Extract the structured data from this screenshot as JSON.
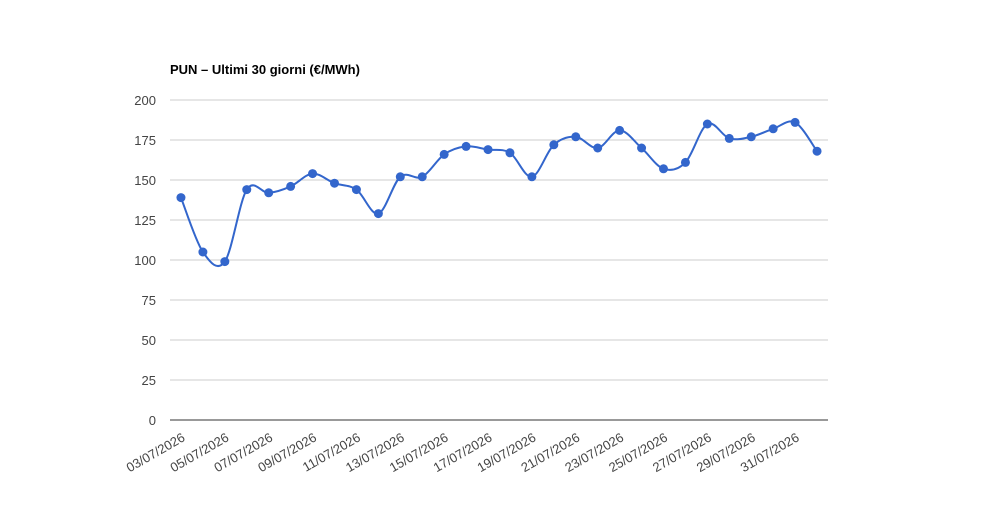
{
  "chart_data": {
    "type": "line",
    "title": "PUN – Ultimi 30 giorni (€/MWh)",
    "categories": [
      "03/07/2026",
      null,
      "05/07/2026",
      null,
      "07/07/2026",
      null,
      "09/07/2026",
      null,
      "11/07/2026",
      null,
      "13/07/2026",
      null,
      "15/07/2026",
      null,
      "17/07/2026",
      null,
      "19/07/2026",
      null,
      "21/07/2026",
      null,
      "23/07/2026",
      null,
      "25/07/2026",
      null,
      "27/07/2026",
      null,
      "29/07/2026",
      null,
      "31/07/2026",
      null
    ],
    "series": [
      {
        "color": "#3366cc",
        "values": [
          139,
          105,
          99,
          144,
          142,
          146,
          154,
          148,
          144,
          129,
          152,
          152,
          166,
          171,
          169,
          167,
          152,
          172,
          177,
          170,
          181,
          170,
          157,
          161,
          185,
          176,
          177,
          182,
          186,
          168
        ]
      }
    ],
    "ylim": [
      0,
      200
    ],
    "yticks": [
      0,
      25,
      50,
      75,
      100,
      125,
      150,
      175,
      200
    ],
    "grid": true
  }
}
